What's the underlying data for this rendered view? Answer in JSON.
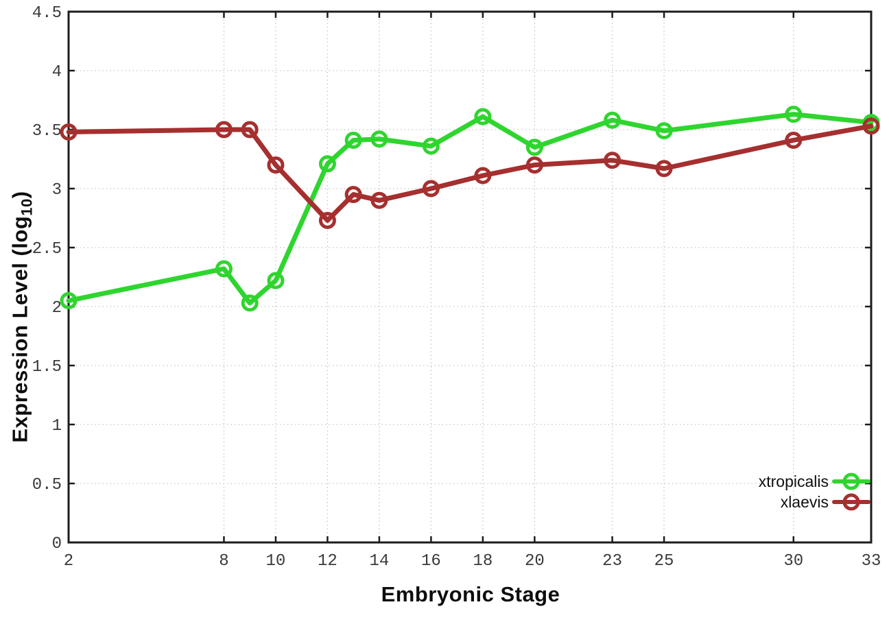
{
  "chart_data": {
    "type": "line",
    "title": "",
    "xlabel": "Embryonic Stage",
    "ylabel": "Expression Level (log10)",
    "ylabel_parts": {
      "pre": "Expression Level (log",
      "sub": "10",
      "post": ")"
    },
    "xlim": [
      2,
      33
    ],
    "ylim": [
      0,
      4.5
    ],
    "xticks": [
      2,
      8,
      10,
      12,
      14,
      16,
      18,
      20,
      23,
      25,
      30,
      33
    ],
    "yticks": [
      0,
      0.5,
      1,
      1.5,
      2,
      2.5,
      3,
      3.5,
      4,
      4.5
    ],
    "grid": true,
    "legend_position": "bottom-right",
    "x": [
      2,
      8,
      9,
      10,
      12,
      13,
      14,
      16,
      18,
      20,
      23,
      25,
      30,
      33
    ],
    "series": [
      {
        "name": "xtropicalis",
        "color": "#2fd52f",
        "marker": "open-circle",
        "values": [
          2.05,
          2.32,
          2.03,
          2.22,
          3.21,
          3.41,
          3.42,
          3.36,
          3.61,
          3.35,
          3.58,
          3.49,
          3.63,
          3.56
        ]
      },
      {
        "name": "xlaevis",
        "color": "#a62f2f",
        "marker": "open-circle",
        "values": [
          3.48,
          3.5,
          3.5,
          3.2,
          2.73,
          2.95,
          2.9,
          3.0,
          3.11,
          3.2,
          3.24,
          3.17,
          3.41,
          3.53
        ]
      }
    ],
    "colors": {
      "axis": "#1c1c1c",
      "grid": "#c3c3c3",
      "tick_text": "#3a3a3a",
      "title_text": "#0d0d0d"
    }
  }
}
